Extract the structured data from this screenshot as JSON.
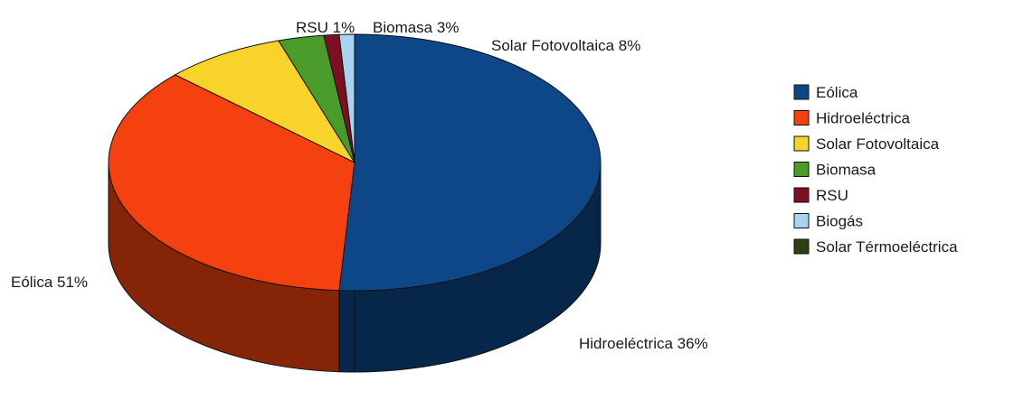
{
  "chart_data": {
    "type": "pie",
    "title": "",
    "categories": [
      "Eólica",
      "Hidroeléctrica",
      "Solar Fotovoltaica",
      "Biomasa",
      "RSU",
      "Biogás",
      "Solar Térmoeléctrica"
    ],
    "values": [
      51,
      36,
      8,
      3,
      1,
      1,
      0
    ],
    "colors": [
      "#0d4787",
      "#f4410f",
      "#f8d42a",
      "#4a9c2a",
      "#7d0f21",
      "#a8d4f2",
      "#2e3f14"
    ],
    "slice_labels": [
      {
        "category": "Eólica",
        "text": "Eólica 51%"
      },
      {
        "category": "Hidroeléctrica",
        "text": "Hidroeléctrica 36%"
      },
      {
        "category": "Solar Fotovoltaica",
        "text": "Solar Fotovoltaica 8%"
      },
      {
        "category": "Biomasa",
        "text": "Biomasa 3%"
      },
      {
        "category": "RSU",
        "text": "RSU 1%"
      }
    ],
    "legend": {
      "position": "right",
      "items": [
        "Eólica",
        "Hidroeléctrica",
        "Solar Fotovoltaica",
        "Biomasa",
        "RSU",
        "Biogás",
        "Solar Térmoeléctrica"
      ]
    },
    "style": "3d"
  }
}
